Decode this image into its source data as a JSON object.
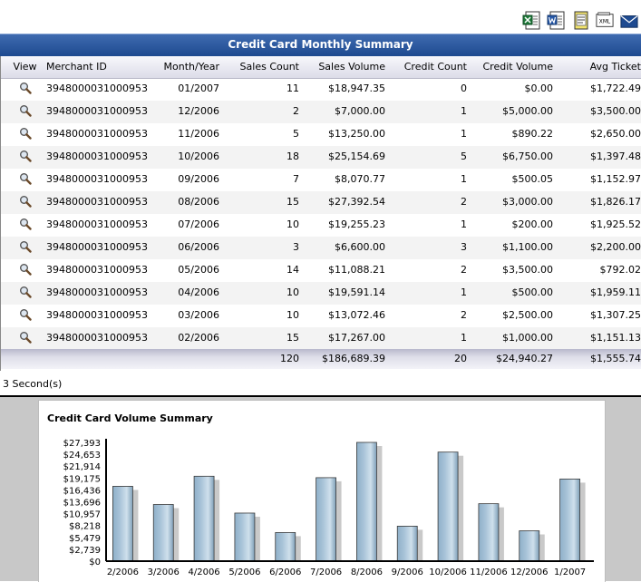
{
  "toolbar": {
    "icons": [
      "excel-export-icon",
      "word-export-icon",
      "print-preview-icon",
      "print-icon",
      "xml-export-icon",
      "email-icon"
    ],
    "xml_label": "XML"
  },
  "grid": {
    "title": "Credit Card Monthly Summary",
    "columns": [
      "View",
      "Merchant ID",
      "Month/Year",
      "Sales Count",
      "Sales Volume",
      "Credit Count",
      "Credit Volume",
      "Avg Ticket"
    ],
    "rows": [
      [
        "3948000031000953",
        "01/2007",
        "11",
        "$18,947.35",
        "0",
        "$0.00",
        "$1,722.49"
      ],
      [
        "3948000031000953",
        "12/2006",
        "2",
        "$7,000.00",
        "1",
        "$5,000.00",
        "$3,500.00"
      ],
      [
        "3948000031000953",
        "11/2006",
        "5",
        "$13,250.00",
        "1",
        "$890.22",
        "$2,650.00"
      ],
      [
        "3948000031000953",
        "10/2006",
        "18",
        "$25,154.69",
        "5",
        "$6,750.00",
        "$1,397.48"
      ],
      [
        "3948000031000953",
        "09/2006",
        "7",
        "$8,070.77",
        "1",
        "$500.05",
        "$1,152.97"
      ],
      [
        "3948000031000953",
        "08/2006",
        "15",
        "$27,392.54",
        "2",
        "$3,000.00",
        "$1,826.17"
      ],
      [
        "3948000031000953",
        "07/2006",
        "10",
        "$19,255.23",
        "1",
        "$200.00",
        "$1,925.52"
      ],
      [
        "3948000031000953",
        "06/2006",
        "3",
        "$6,600.00",
        "3",
        "$1,100.00",
        "$2,200.00"
      ],
      [
        "3948000031000953",
        "05/2006",
        "14",
        "$11,088.21",
        "2",
        "$3,500.00",
        "$792.02"
      ],
      [
        "3948000031000953",
        "04/2006",
        "10",
        "$19,591.14",
        "1",
        "$500.00",
        "$1,959.11"
      ],
      [
        "3948000031000953",
        "03/2006",
        "10",
        "$13,072.46",
        "2",
        "$2,500.00",
        "$1,307.25"
      ],
      [
        "3948000031000953",
        "02/2006",
        "15",
        "$17,267.00",
        "1",
        "$1,000.00",
        "$1,151.13"
      ]
    ],
    "totals": [
      "120",
      "$186,689.39",
      "20",
      "$24,940.27",
      "$1,555.74"
    ],
    "row_action_icon": "magnifier-icon"
  },
  "status": {
    "text": "3 Second(s)"
  },
  "chart_data": {
    "type": "bar",
    "title": "Credit Card Volume Summary",
    "xlabel": "",
    "ylabel": "",
    "categories": [
      "2/2006",
      "3/2006",
      "4/2006",
      "5/2006",
      "6/2006",
      "7/2006",
      "8/2006",
      "9/2006",
      "10/2006",
      "11/2006",
      "12/2006",
      "1/2007"
    ],
    "values": [
      17267.0,
      13072.46,
      19591.14,
      11088.21,
      6600.0,
      19255.23,
      27392.54,
      8070.77,
      25154.69,
      13250.0,
      7000.0,
      18947.35
    ],
    "ytick_values": [
      0,
      2739,
      5479,
      8218,
      10957,
      13696,
      16436,
      19175,
      21914,
      24653,
      27393
    ],
    "yticks": [
      "$0",
      "$2,739",
      "$5,479",
      "$8,218",
      "$10,957",
      "$13,696",
      "$16,436",
      "$19,175",
      "$21,914",
      "$24,653",
      "$27,393"
    ],
    "ylim": [
      0,
      27393
    ],
    "grid": false,
    "legend": "none",
    "bar_color": "#a8c3d8"
  }
}
